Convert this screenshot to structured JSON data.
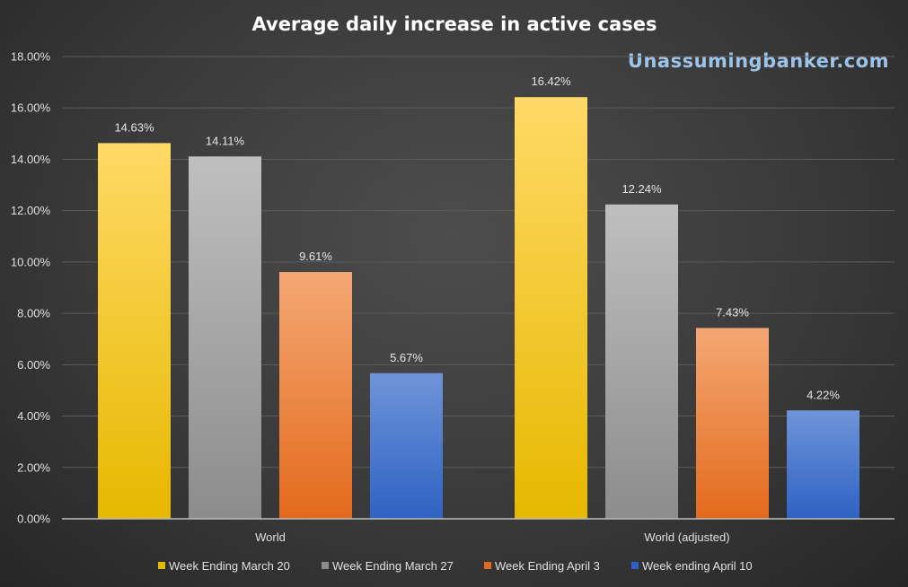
{
  "chart_data": {
    "type": "bar",
    "title": "Average daily increase in active cases",
    "watermark": "Unassumingbanker.com",
    "categories": [
      "World",
      "World (adjusted)"
    ],
    "series": [
      {
        "name": "Week Ending March 20",
        "values": [
          14.63,
          16.42
        ],
        "labels": [
          "14.63%",
          "16.42%"
        ],
        "color_top": "#ffd966",
        "color_bottom": "#e6b800"
      },
      {
        "name": "Week Ending March 27",
        "values": [
          14.11,
          12.24
        ],
        "labels": [
          "14.11%",
          "12.24%"
        ],
        "color_top": "#bfbfbf",
        "color_bottom": "#8c8c8c"
      },
      {
        "name": "Week Ending April 3",
        "values": [
          9.61,
          7.43
        ],
        "labels": [
          "9.61%",
          "7.43%"
        ],
        "color_top": "#f4a774",
        "color_bottom": "#e36a1c"
      },
      {
        "name": "Week ending April 10",
        "values": [
          5.67,
          4.22
        ],
        "labels": [
          "5.67%",
          "4.22%"
        ],
        "color_top": "#6f94d8",
        "color_bottom": "#2f62c4"
      }
    ],
    "ylim": [
      0,
      18
    ],
    "yticks": [
      0,
      2,
      4,
      6,
      8,
      10,
      12,
      14,
      16,
      18
    ],
    "ytick_labels": [
      "0.00%",
      "2.00%",
      "4.00%",
      "6.00%",
      "8.00%",
      "10.00%",
      "12.00%",
      "14.00%",
      "16.00%",
      "18.00%"
    ],
    "grid": true,
    "legend_position": "bottom"
  }
}
